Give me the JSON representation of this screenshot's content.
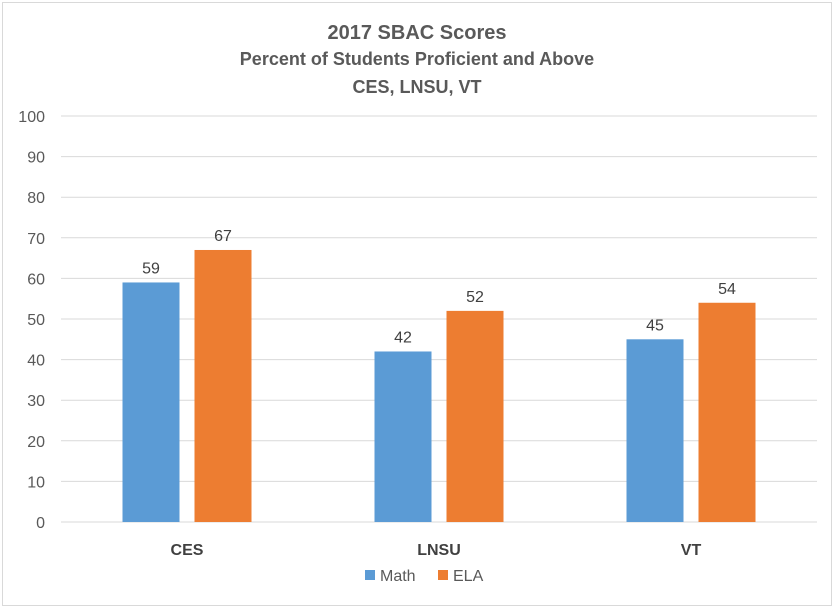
{
  "chart_data": {
    "type": "bar",
    "title": "2017 SBAC Scores",
    "subtitle": "Percent of Students Proficient and Above",
    "subtitle2": "CES, LNSU, VT",
    "categories": [
      "CES",
      "LNSU",
      "VT"
    ],
    "series": [
      {
        "name": "Math",
        "values": [
          59,
          42,
          45
        ],
        "color": "#5b9bd5"
      },
      {
        "name": "ELA",
        "values": [
          67,
          52,
          54
        ],
        "color": "#ed7d31"
      }
    ],
    "ylim": [
      0,
      100
    ],
    "yticks": [
      0,
      10,
      20,
      30,
      40,
      50,
      60,
      70,
      80,
      90,
      100
    ],
    "grid": true,
    "legend": "bottom",
    "gridColor": "#d9d9d9"
  }
}
